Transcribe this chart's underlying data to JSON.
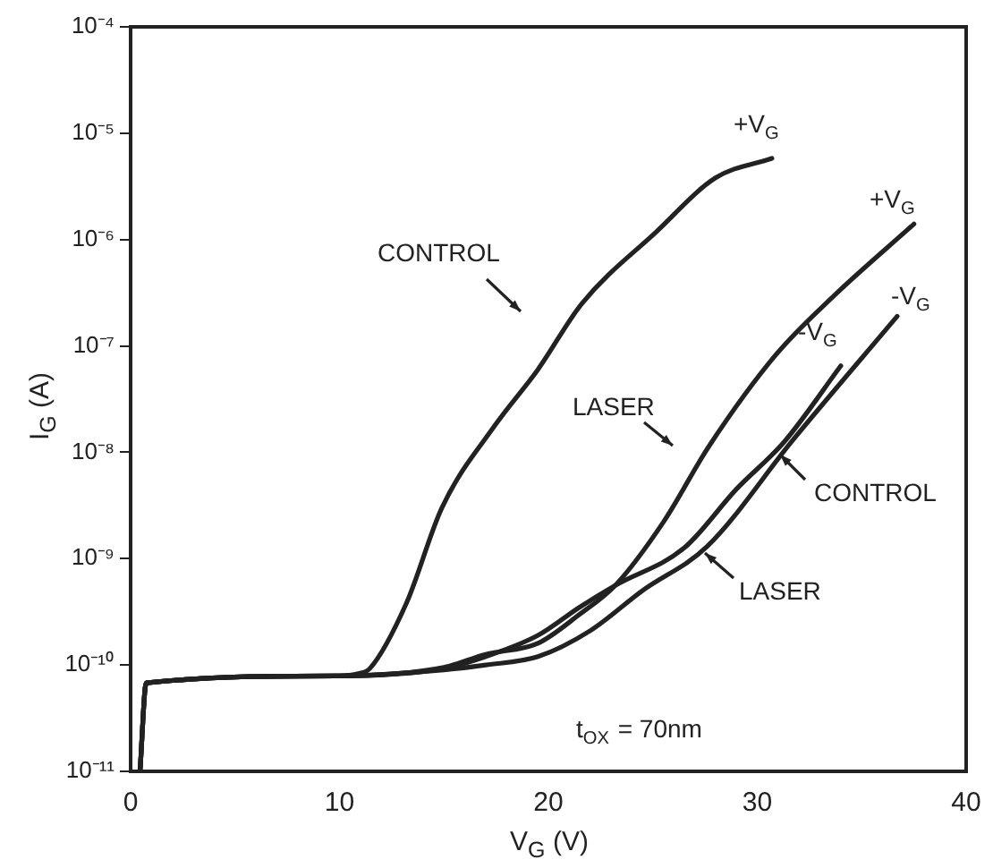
{
  "chart_data": {
    "type": "line",
    "xlabel": "V$_{G}$ (V)",
    "ylabel": "I$_{G}$ (A)",
    "log": "y",
    "grid": false,
    "legend": false,
    "marker": "none",
    "line_style": "solid",
    "xlim": [
      0,
      40
    ],
    "xticks": [
      0,
      10,
      20,
      30,
      40
    ],
    "ylim": [
      1e-11,
      0.0001
    ],
    "yticks": [
      {
        "value": 1e-11,
        "label": "10⁻¹¹"
      },
      {
        "value": 1e-10,
        "label": "10⁻¹⁰"
      },
      {
        "value": 1e-09,
        "label": "10⁻⁹"
      },
      {
        "value": 1e-08,
        "label": "10⁻⁸"
      },
      {
        "value": 1e-07,
        "label": "10⁻⁷"
      },
      {
        "value": 1e-06,
        "label": "10⁻⁶"
      },
      {
        "value": 1e-05,
        "label": "10⁻⁵"
      },
      {
        "value": 0.0001,
        "label": "10⁻⁴"
      }
    ],
    "series": [
      {
        "color": "#222222",
        "x": [
          0.45,
          0.75,
          10,
          10.9,
          11.46,
          13.2,
          14.9,
          17.45,
          19.5,
          21.6,
          25.2,
          28.0,
          30.7
        ],
        "values": [
          1e-11,
          6.8e-11,
          7.9e-11,
          8.3e-11,
          9.3e-11,
          3.8e-10,
          3e-09,
          1.8e-08,
          6e-08,
          2.5e-07,
          1.2e-06,
          3.8e-06,
          5.8e-06
        ]
      },
      {
        "color": "#222222",
        "x": [
          0.45,
          0.75,
          10,
          15,
          17,
          19.5,
          21.5,
          23.2,
          25.5,
          27.7,
          30.9,
          33.7,
          37.5
        ],
        "values": [
          1e-11,
          6.8e-11,
          7.9e-11,
          9.5e-11,
          1.26e-10,
          1.6e-10,
          3e-10,
          5.6e-10,
          2.2e-09,
          1.15e-08,
          8.3e-08,
          3e-07,
          1.4e-06
        ]
      },
      {
        "color": "#222222",
        "x": [
          0.45,
          0.75,
          10,
          15,
          17,
          19.5,
          21.5,
          23.2,
          26.5,
          29,
          31.3,
          34.0
        ],
        "values": [
          1e-11,
          6.8e-11,
          7.9e-11,
          9.3e-11,
          1.2e-10,
          1.9e-10,
          3.5e-10,
          5.6e-10,
          1.26e-09,
          4.5e-09,
          1.26e-08,
          6.5e-08
        ]
      },
      {
        "color": "#222222",
        "x": [
          0.45,
          0.75,
          10,
          15,
          17,
          19.5,
          22,
          24.5,
          27.6,
          31.7,
          36.7
        ],
        "values": [
          1e-11,
          6.8e-11,
          7.9e-11,
          9e-11,
          1e-10,
          1.2e-10,
          2.1e-10,
          5e-10,
          1.3e-09,
          1.3e-08,
          1.9e-07
        ]
      }
    ],
    "annotations": [
      "+V$_{G}$",
      "+V$_{G}$",
      "-V$_{G}$",
      "-V$_{G}$",
      "CONTROL",
      "LASER",
      "CONTROL",
      "LASER",
      "t$_{OX}$ = 70nm"
    ]
  }
}
